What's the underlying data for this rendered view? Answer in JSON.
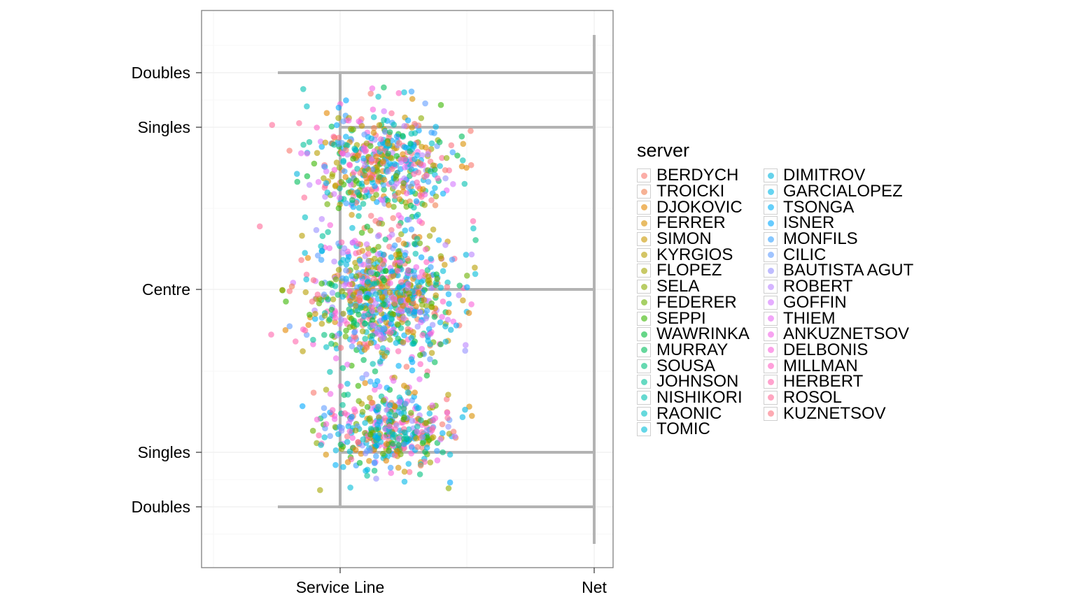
{
  "chart_data": {
    "type": "scatter",
    "x_axis": {
      "tick_labels": [
        "Service Line",
        "Net"
      ]
    },
    "y_axis": {
      "tick_labels": [
        "Doubles",
        "Singles",
        "Centre",
        "Singles",
        "Doubles"
      ]
    },
    "grid": true,
    "legend_placement": "right",
    "legend": {
      "title": "server",
      "entries": [
        {
          "name": "BERDYCH",
          "color": "#F8766D"
        },
        {
          "name": "TROICKI",
          "color": "#F07F4F"
        },
        {
          "name": "DJOKOVIC",
          "color": "#E58700"
        },
        {
          "name": "FERRER",
          "color": "#D89000"
        },
        {
          "name": "SIMON",
          "color": "#C99800"
        },
        {
          "name": "KYRGIOS",
          "color": "#B79F00"
        },
        {
          "name": "FLOPEZ",
          "color": "#A3A500"
        },
        {
          "name": "SELA",
          "color": "#8BAB00"
        },
        {
          "name": "FEDERER",
          "color": "#6BB100"
        },
        {
          "name": "SEPPI",
          "color": "#39B600"
        },
        {
          "name": "WAWRINKA",
          "color": "#00BA38"
        },
        {
          "name": "MURRAY",
          "color": "#00BD5C"
        },
        {
          "name": "SOUSA",
          "color": "#00BF7D"
        },
        {
          "name": "JOHNSON",
          "color": "#00C19A"
        },
        {
          "name": "NISHIKORI",
          "color": "#00C0B0"
        },
        {
          "name": "RAONIC",
          "color": "#00BFC4"
        },
        {
          "name": "TOMIC",
          "color": "#00BCD8"
        },
        {
          "name": "DIMITROV",
          "color": "#00B4DD"
        },
        {
          "name": "GARCIALOPEZ",
          "color": "#00B8E7"
        },
        {
          "name": "TSONGA",
          "color": "#00B0F6"
        },
        {
          "name": "ISNER",
          "color": "#00A9FF"
        },
        {
          "name": "MONFILS",
          "color": "#35A2FF"
        },
        {
          "name": "CILIC",
          "color": "#619CFF"
        },
        {
          "name": "BAUTISTA AGUT",
          "color": "#9590FF"
        },
        {
          "name": "ROBERT",
          "color": "#B983FF"
        },
        {
          "name": "GOFFIN",
          "color": "#D376FF"
        },
        {
          "name": "THIEM",
          "color": "#E76BF3"
        },
        {
          "name": "ANKUZNETSOV",
          "color": "#F265E7"
        },
        {
          "name": "DELBONIS",
          "color": "#FA62DB"
        },
        {
          "name": "MILLMAN",
          "color": "#FF61C3"
        },
        {
          "name": "HERBERT",
          "color": "#FF65AE"
        },
        {
          "name": "ROSOL",
          "color": "#FF6A98"
        },
        {
          "name": "KUZNETSOV",
          "color": "#FC717F"
        }
      ]
    },
    "court_line_color": "#b3b3b3",
    "point_opacity": 0.6
  }
}
